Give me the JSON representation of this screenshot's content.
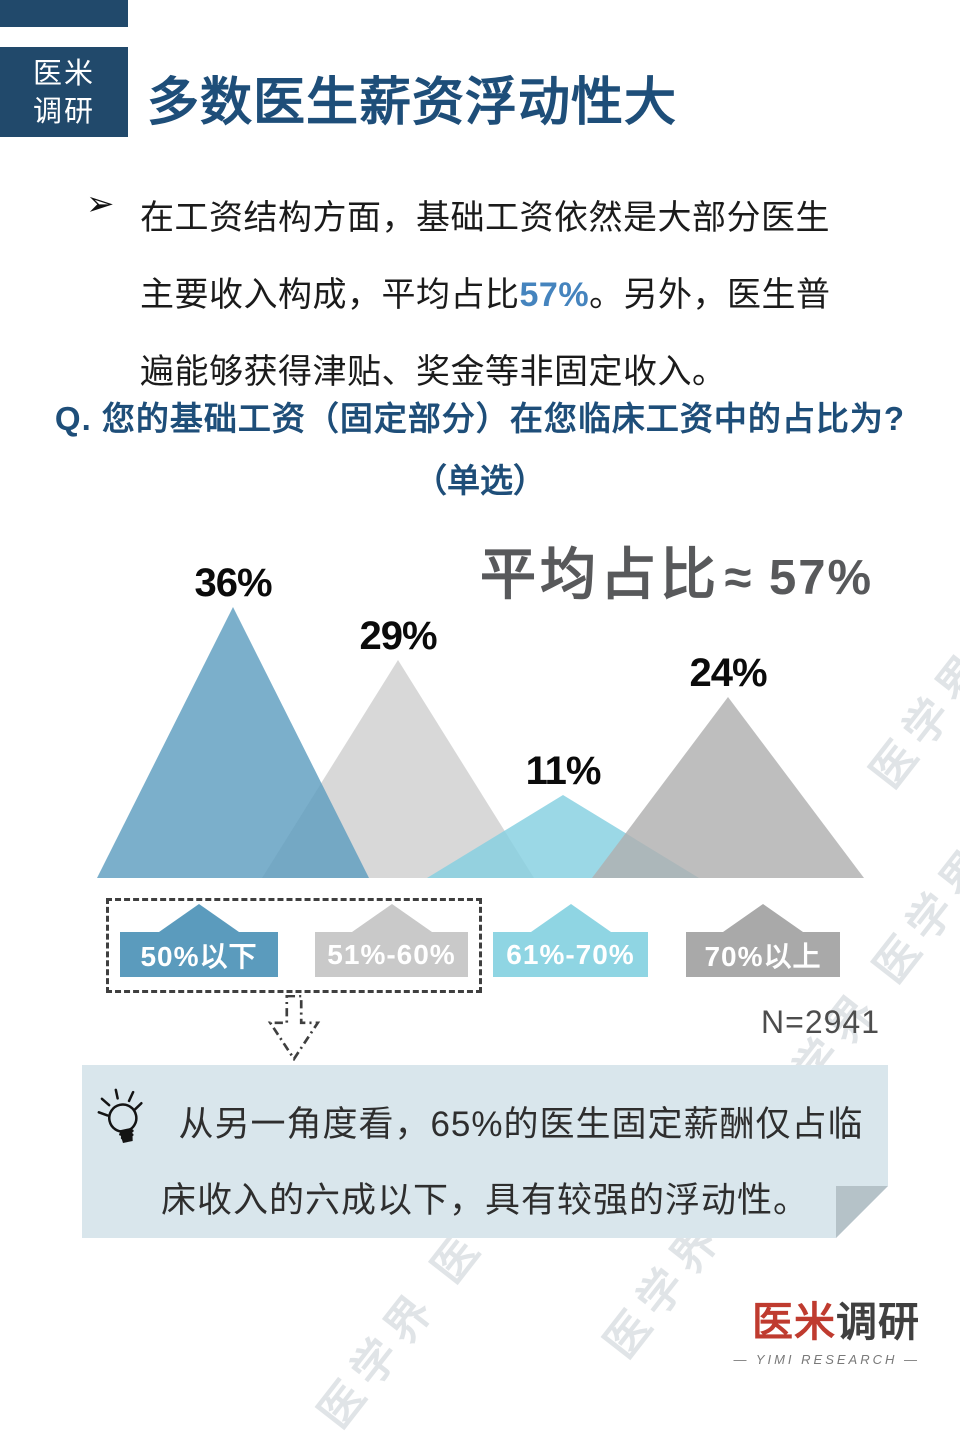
{
  "theme": {
    "navy": "#21496b",
    "title": "#1e4e79",
    "highlight": "#4584be",
    "text": "#1b1b1b",
    "gray_label": "#58595b",
    "callout_bg": "#d9e6ec",
    "callout_fold": "#b5c2c8",
    "brand_red": "#bf3b2f",
    "watermark": "#c3cad0"
  },
  "brand_badge": {
    "line1": "医米",
    "line2": "调研"
  },
  "header": {
    "title": "多数医生薪资浮动性大"
  },
  "intro": {
    "bullet": "➢",
    "text_before": "在工资结构方面，基础工资依然是大部分医生主要收入构成，平均占比",
    "highlight": "57%",
    "text_after": "。另外，医生普遍能够获得津贴、奖金等非固定收入。"
  },
  "question": {
    "line1": "Q. 您的基础工资（固定部分）在您临床工资中的占比为?",
    "line2": "（单选）"
  },
  "chart_data": {
    "type": "bar",
    "variant": "overlapping-triangle-peaks",
    "categories": [
      "50%以下",
      "51%-60%",
      "61%-70%",
      "70%以上"
    ],
    "values": [
      36,
      29,
      11,
      24
    ],
    "unit": "%",
    "value_labels": [
      "36%",
      "29%",
      "11%",
      "24%"
    ],
    "colors": [
      "#5e9dc0",
      "#cfcfcf",
      "#85d0e0",
      "#b0b0b0"
    ],
    "legend_colors": [
      "#5b9bbd",
      "#c9c9c9",
      "#8fd5e3",
      "#a9a9a9"
    ],
    "annotation": {
      "label": "平均占比",
      "value": "≈ 57%"
    },
    "sample": "N=2941",
    "highlighted_group": [
      "50%以下",
      "51%-60%"
    ],
    "ylim": [
      0,
      40
    ],
    "grid": false,
    "legend_position": "bottom"
  },
  "callout": {
    "icon": "lightbulb-icon",
    "line1": "从另一角度看，65%的医生固定薪酬仅占临",
    "line2": "床收入的六成以下，具有较强的浮动性。"
  },
  "sample_note": "N=2941",
  "footer": {
    "brand_red": "医米",
    "brand_dark": "调研",
    "subtitle": "— YIMI RESEARCH —"
  },
  "watermark": {
    "text": "医学界",
    "text_double": "医学界  医学界"
  }
}
